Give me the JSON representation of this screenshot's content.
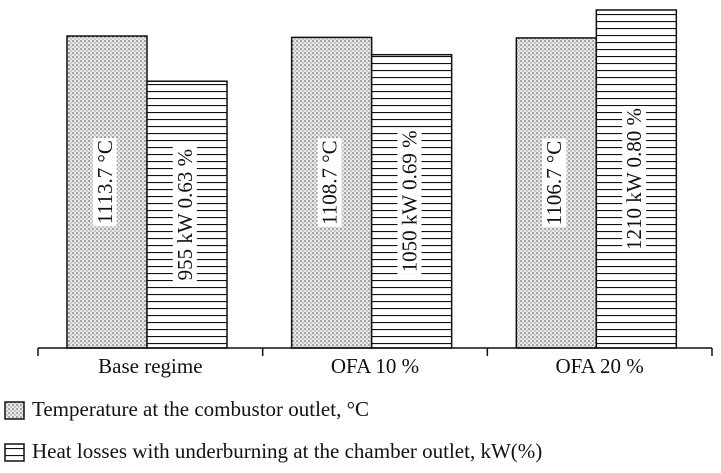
{
  "chart_data": {
    "type": "bar",
    "categories": [
      "Base regime",
      "OFA 10 %",
      "OFA 20 %"
    ],
    "series": [
      {
        "name": "Temperature at the combustor outlet, °C",
        "color": "#8a8a8a",
        "values": [
          1113.7,
          1108.7,
          1106.7
        ],
        "value_labels": [
          "1113.7 °C",
          "1108.7 °C",
          "1106.7 °C"
        ]
      },
      {
        "name": "Heat losses with underburning at the chamber outlet, kW(%)",
        "color": "#111111",
        "values": [
          955,
          1050,
          1210
        ],
        "value_labels": [
          "955  kW 0.63 %",
          "1050  kW 0.69 %",
          "1210 kW 0.80 %"
        ]
      }
    ]
  }
}
